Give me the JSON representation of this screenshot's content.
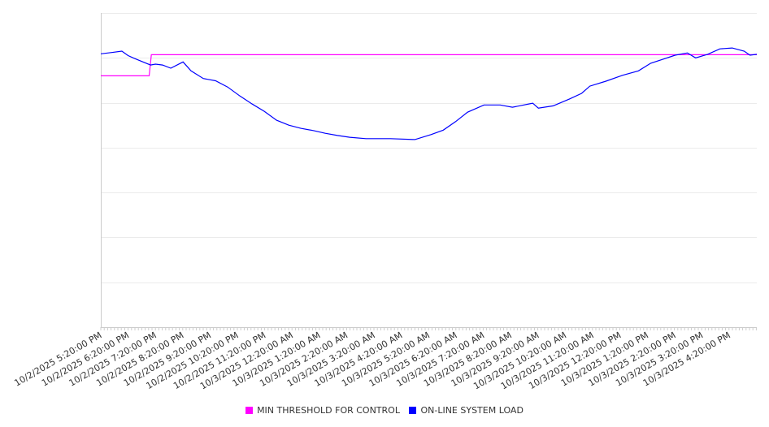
{
  "chart_data": {
    "type": "line",
    "title": "",
    "xlabel": "",
    "ylabel": "",
    "x_unit": "hours since 10/2/2025 5:20:00 PM",
    "xlim": [
      0,
      24
    ],
    "ylim": [
      0,
      7
    ],
    "y_tick_labels_shown": false,
    "grid": true,
    "legend_position": "bottom",
    "x_tick_labels": [
      "10/2/2025 5:20:00 PM",
      "10/2/2025 6:20:00 PM",
      "10/2/2025 7:20:00 PM",
      "10/2/2025 8:20:00 PM",
      "10/2/2025 9:20:00 PM",
      "10/2/2025 10:20:00 PM",
      "10/2/2025 11:20:00 PM",
      "10/3/2025 12:20:00 AM",
      "10/3/2025 1:20:00 AM",
      "10/3/2025 2:20:00 AM",
      "10/3/2025 3:20:00 AM",
      "10/3/2025 4:20:00 AM",
      "10/3/2025 5:20:00 AM",
      "10/3/2025 6:20:00 AM",
      "10/3/2025 7:20:00 AM",
      "10/3/2025 8:20:00 AM",
      "10/3/2025 9:20:00 AM",
      "10/3/2025 10:20:00 AM",
      "10/3/2025 11:20:00 AM",
      "10/3/2025 12:20:00 PM",
      "10/3/2025 1:20:00 PM",
      "10/3/2025 2:20:00 PM",
      "10/3/2025 3:20:00 PM",
      "10/3/2025 4:20:00 PM"
    ],
    "series": [
      {
        "name": "MIN THRESHOLD FOR CONTROL",
        "color": "#ff00ff",
        "x": [
          0,
          1.77,
          1.85,
          24
        ],
        "y": [
          5.6,
          5.6,
          6.07,
          6.07
        ]
      },
      {
        "name": "ON-LINE SYSTEM LOAD",
        "color": "#0000ff",
        "x": [
          0,
          0.4,
          0.77,
          1.0,
          1.22,
          1.5,
          1.82,
          2.0,
          2.26,
          2.56,
          3.01,
          3.3,
          3.75,
          4.2,
          4.64,
          5.09,
          5.54,
          5.98,
          6.43,
          6.88,
          7.32,
          7.77,
          8.21,
          8.66,
          9.11,
          9.7,
          10.6,
          11.49,
          12.08,
          12.53,
          12.98,
          13.42,
          14.02,
          14.61,
          15.06,
          15.8,
          16.01,
          16.55,
          17.14,
          17.59,
          17.89,
          18.48,
          19.08,
          19.67,
          20.12,
          20.57,
          21.01,
          21.46,
          21.76,
          22.2,
          22.65,
          23.1,
          23.54,
          23.75,
          24.0
        ],
        "y": [
          6.09,
          6.12,
          6.15,
          6.05,
          5.99,
          5.92,
          5.84,
          5.86,
          5.84,
          5.77,
          5.91,
          5.71,
          5.54,
          5.49,
          5.35,
          5.15,
          4.97,
          4.81,
          4.61,
          4.5,
          4.43,
          4.38,
          4.32,
          4.27,
          4.23,
          4.2,
          4.2,
          4.18,
          4.29,
          4.39,
          4.58,
          4.79,
          4.95,
          4.95,
          4.9,
          4.99,
          4.88,
          4.93,
          5.08,
          5.21,
          5.37,
          5.48,
          5.61,
          5.71,
          5.88,
          5.97,
          6.06,
          6.11,
          6.0,
          6.08,
          6.2,
          6.22,
          6.15,
          6.06,
          6.08
        ]
      }
    ]
  }
}
